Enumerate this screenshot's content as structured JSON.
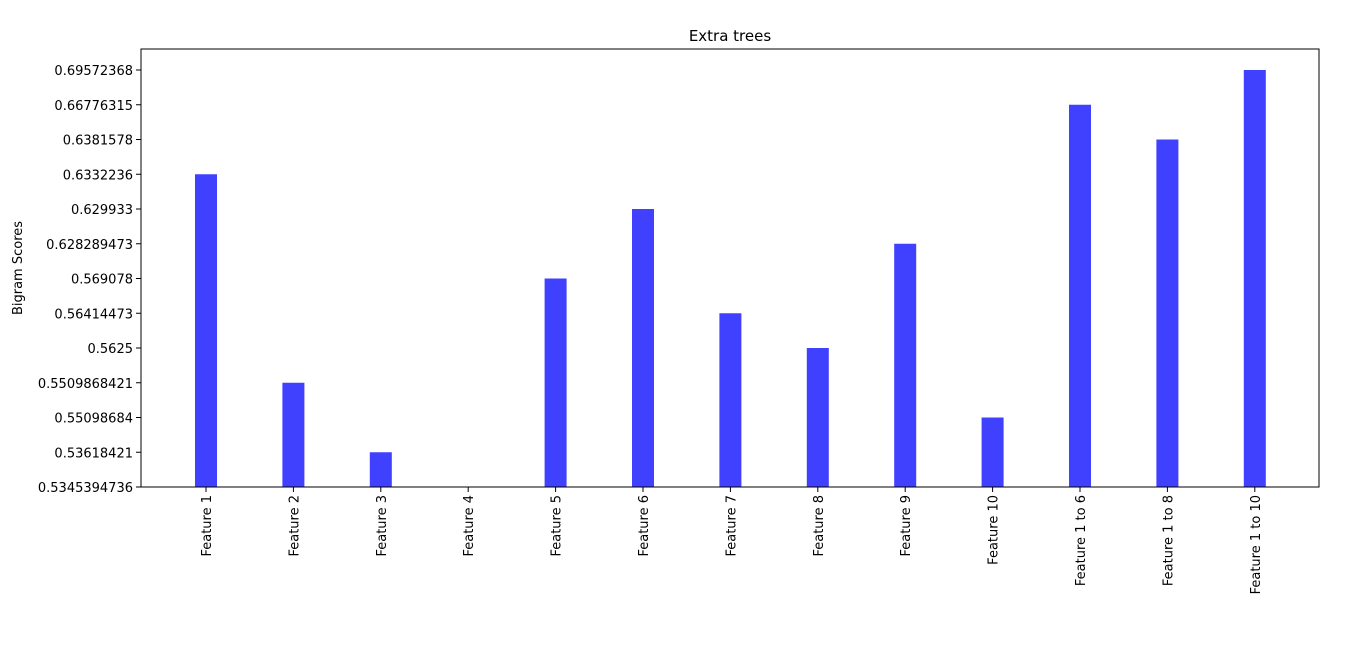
{
  "chart_data": {
    "type": "bar",
    "title": "Extra trees",
    "xlabel": "",
    "ylabel": "Bigram Scores",
    "bar_color": "#4040ff",
    "grid": false,
    "y_tick_labels": [
      "0.5345394736",
      "0.53618421",
      "0.55098684",
      "0.5509868421",
      "0.5625",
      "0.56414473",
      "0.569078",
      "0.628289473",
      "0.629933",
      "0.6332236",
      "0.6381578",
      "0.66776315",
      "0.69572368"
    ],
    "categories": [
      "Feature 1",
      "Feature 2",
      "Feature 3",
      "Feature 4",
      "Feature 5",
      "Feature 6",
      "Feature 7",
      "Feature 8",
      "Feature 9",
      "Feature 10",
      "Feature 1 to 6",
      "Feature 1 to 8",
      "Feature 1 to 10"
    ],
    "values": [
      "0.6332236",
      "0.5509868421",
      "0.53618421",
      "0.5345394736",
      "0.569078",
      "0.629933",
      "0.56414473",
      "0.5625",
      "0.628289473",
      "0.55098684",
      "0.66776315",
      "0.6381578",
      "0.69572368"
    ]
  }
}
